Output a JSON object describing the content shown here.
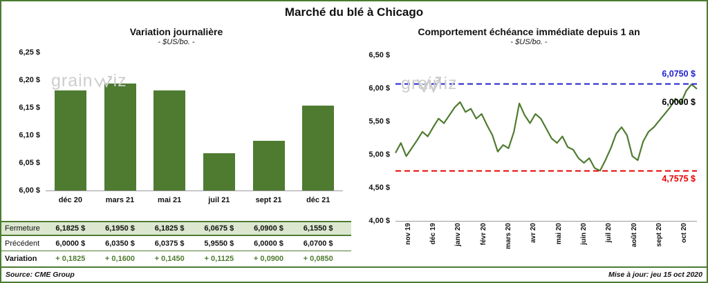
{
  "title": "Marché du blé à Chicago",
  "watermark": {
    "full": "grainwiz",
    "part1": "grain",
    "part2": "iz"
  },
  "footer": {
    "source": "Source: CME Group",
    "updated": "Mise à jour: jeu 15 oct 2020"
  },
  "colors": {
    "green": "#4e7b30",
    "row_green": "#dbe7cf",
    "blue": "#1f1fd0",
    "red": "#e80000",
    "border_green": "#4a7b2f",
    "watermark_gray": "#cdcdcd"
  },
  "chart_data": [
    {
      "type": "bar",
      "title": "Variation journalière",
      "subtitle": "- $US/bo. -",
      "categories": [
        "déc 20",
        "mars 21",
        "mai 21",
        "juil 21",
        "sept 21",
        "déc 21"
      ],
      "values": [
        6.1825,
        6.195,
        6.1825,
        6.0675,
        6.09,
        6.155
      ],
      "ylim": [
        6.0,
        6.25
      ],
      "yticks": [
        "6,00 $",
        "6,05 $",
        "6,10 $",
        "6,15 $",
        "6,20 $",
        "6,25 $"
      ],
      "xlabel": "",
      "ylabel": "",
      "grid": false,
      "bar_color": "#4e7b30"
    },
    {
      "type": "line",
      "title": "Comportement échéance immédiate depuis 1 an",
      "subtitle": "- $US/bo. -",
      "categories": [
        "nov 19",
        "déc 19",
        "janv 20",
        "févr 20",
        "mars 20",
        "avr 20",
        "mai 20",
        "juin 20",
        "juil 20",
        "août 20",
        "sept 20",
        "oct 20"
      ],
      "values": [
        5.03,
        5.18,
        4.98,
        5.1,
        5.22,
        5.35,
        5.28,
        5.42,
        5.55,
        5.48,
        5.6,
        5.72,
        5.8,
        5.65,
        5.7,
        5.55,
        5.62,
        5.45,
        5.3,
        5.05,
        5.15,
        5.1,
        5.35,
        5.78,
        5.6,
        5.48,
        5.62,
        5.55,
        5.4,
        5.25,
        5.18,
        5.28,
        5.12,
        5.08,
        4.95,
        4.88,
        4.95,
        4.8,
        4.76,
        4.92,
        5.1,
        5.32,
        5.42,
        5.3,
        4.98,
        4.92,
        5.2,
        5.35,
        5.42,
        5.52,
        5.62,
        5.72,
        5.85,
        5.78,
        5.97,
        6.07,
        6.0
      ],
      "ylim": [
        4.0,
        6.5
      ],
      "yticks": [
        "4,00 $",
        "4,50 $",
        "5,00 $",
        "5,50 $",
        "6,00 $",
        "6,50 $"
      ],
      "xlabel": "",
      "ylabel": "",
      "grid": false,
      "line_color": "#4e7b30",
      "annotations": [
        {
          "type": "hline",
          "value": 6.075,
          "label": "6,0750 $",
          "color": "#1f1fd0",
          "style": "dashed"
        },
        {
          "type": "hline",
          "value": 4.7575,
          "label": "4,7575 $",
          "color": "#e80000",
          "style": "dashed"
        },
        {
          "type": "last_price",
          "value": 6.0,
          "label": "6,0000 $",
          "color": "#000000",
          "style": "none"
        }
      ]
    }
  ],
  "table": {
    "rows": [
      {
        "label": "Fermeture",
        "values": [
          "6,1825 $",
          "6,1950 $",
          "6,1825 $",
          "6,0675 $",
          "6,0900 $",
          "6,1550 $"
        ]
      },
      {
        "label": "Précédent",
        "values": [
          "6,0000 $",
          "6,0350 $",
          "6,0375 $",
          "5,9550 $",
          "6,0000 $",
          "6,0700 $"
        ]
      },
      {
        "label": "Variation",
        "values": [
          "+ 0,1825",
          "+ 0,1600",
          "+ 0,1450",
          "+ 0,1125",
          "+ 0,0900",
          "+ 0,0850"
        ]
      }
    ]
  }
}
